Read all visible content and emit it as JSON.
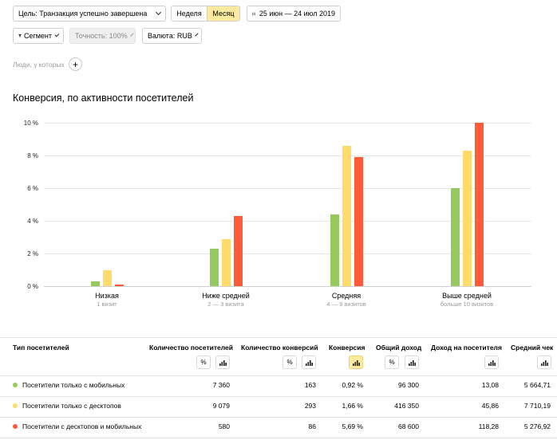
{
  "controls": {
    "goal_label": "Цель: Транзакция успешно завершена",
    "week_label": "Неделя",
    "month_label": "Месяц",
    "date_range": "25 июн — 24 июл 2019",
    "segment_label": "Сегмент",
    "accuracy_label": "Точность: 100%",
    "currency_label": "Валюта: RUB",
    "people_label": "Люди, у которых",
    "add_symbol": "+"
  },
  "colors": {
    "green": "#96c95e",
    "yellow": "#ffdb6b",
    "red": "#ff5a3a",
    "active": "#ffeba0"
  },
  "section_title": "Конверсия, по активности посетителей",
  "chart_data": {
    "type": "bar",
    "title": "Конверсия, по активности посетителей",
    "categories": [
      "Низкая",
      "Ниже средней",
      "Средняя",
      "Выше средней"
    ],
    "category_subtitles": [
      "1 визит",
      "2 — 3 визита",
      "4 — 9 визитов",
      "больше 10 визитов"
    ],
    "ylim": [
      0,
      10
    ],
    "yticks": [
      "0 %",
      "2 %",
      "4 %",
      "6 %",
      "8 %",
      "10 %"
    ],
    "grid": true,
    "series": [
      {
        "name": "Посетители только с мобильных",
        "color": "#96c95e",
        "values": [
          0.3,
          2.3,
          4.4,
          6.0
        ]
      },
      {
        "name": "Посетители только с десктопов",
        "color": "#ffdb6b",
        "values": [
          1.0,
          2.9,
          8.6,
          8.3
        ]
      },
      {
        "name": "Посетители с десктопов и мобильных",
        "color": "#ff5a3a",
        "values": [
          0.1,
          4.3,
          7.9,
          10.0
        ]
      }
    ]
  },
  "table": {
    "headers": {
      "type": "Тип посетителей",
      "visitors": "Количество посетителей",
      "conversions": "Количество конверсий",
      "conversion": "Конверсия",
      "revenue": "Общий доход",
      "per_visitor": "Доход на посетителя",
      "avg_check": "Средний чек"
    },
    "icons": {
      "percent": "%",
      "chart": "chart-icon"
    },
    "rows": [
      {
        "type": "Посетители только с мобильных",
        "visitors": "7 360",
        "conversions": "163",
        "conversion": "0,92 %",
        "revenue": "96 300",
        "per_visitor": "13,08",
        "avg_check": "5 664,71"
      },
      {
        "type": "Посетители только с десктопов",
        "visitors": "9 079",
        "conversions": "293",
        "conversion": "1,66 %",
        "revenue": "416 350",
        "per_visitor": "45,86",
        "avg_check": "7 710,19"
      },
      {
        "type": "Посетители с десктопов и мобильных",
        "visitors": "580",
        "conversions": "86",
        "conversion": "5,69 %",
        "revenue": "68 600",
        "per_visitor": "118,28",
        "avg_check": "5 276,92"
      }
    ]
  }
}
